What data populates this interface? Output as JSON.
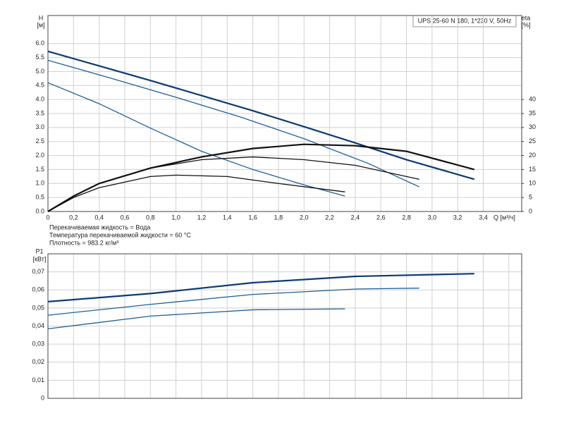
{
  "chart_data": [
    {
      "type": "line",
      "title": "UPS 25-60 N 180, 1*230 V, 50Hz",
      "y_label": "H",
      "y_unit": "[м]",
      "y2_label": "eta",
      "y2_unit": "[%]",
      "x_label": "Q [м³/ч]",
      "annotations": [
        "Перекачиваемая жидкость = Вода",
        "Температура перекачиваемой жидкости = 60 °C",
        "Плотность = 983.2 кг/м³"
      ],
      "xlim": [
        0,
        3.7
      ],
      "xticks": [
        0,
        {
          "value": 0.2,
          "label": "0,2"
        },
        {
          "value": 0.4,
          "label": "0,4"
        },
        {
          "value": 0.6,
          "label": "0,6"
        },
        {
          "value": 0.8,
          "label": "0,8"
        },
        {
          "value": 1.0,
          "label": "1,0"
        },
        {
          "value": 1.2,
          "label": "1,2"
        },
        {
          "value": 1.4,
          "label": "1,4"
        },
        {
          "value": 1.6,
          "label": "1,6"
        },
        {
          "value": 1.8,
          "label": "1,8"
        },
        {
          "value": 2.0,
          "label": "2,0"
        },
        {
          "value": 2.2,
          "label": "2,2"
        },
        {
          "value": 2.4,
          "label": "2,4"
        },
        {
          "value": 2.6,
          "label": "2,6"
        },
        {
          "value": 2.8,
          "label": "2,8"
        },
        {
          "value": 3.0,
          "label": "3,0"
        },
        {
          "value": 3.2,
          "label": "3,2"
        },
        {
          "value": 3.4,
          "label": "3,4"
        }
      ],
      "ylim": [
        0,
        7
      ],
      "yticks": [
        {
          "value": 0,
          "label": "0.0"
        },
        0.5,
        {
          "value": 1,
          "label": "1.0"
        },
        1.5,
        {
          "value": 2,
          "label": "2.0"
        },
        2.5,
        {
          "value": 3,
          "label": "3.0"
        },
        3.5,
        {
          "value": 4,
          "label": "4.0"
        },
        4.5,
        {
          "value": 5,
          "label": "5.0"
        },
        5.5,
        {
          "value": 6,
          "label": "6.0"
        }
      ],
      "y2lim": [
        0,
        70
      ],
      "y2ticks": [
        0,
        5,
        10,
        15,
        20,
        25,
        30,
        35,
        40
      ],
      "grid": true,
      "series": [
        {
          "color": "#0b3a75",
          "x": [
            0,
            0.4,
            0.8,
            1.2,
            1.6,
            2.0,
            2.4,
            2.8,
            3.33
          ],
          "values": [
            5.72,
            5.2,
            4.68,
            4.14,
            3.6,
            3.03,
            2.45,
            1.85,
            1.15
          ]
        },
        {
          "color": "#1f5f9a",
          "x": [
            0,
            0.5,
            1.0,
            1.5,
            2.0,
            2.5,
            2.9
          ],
          "values": [
            5.4,
            4.75,
            4.08,
            3.38,
            2.6,
            1.72,
            0.88
          ]
        },
        {
          "color": "#1f5f9a",
          "x": [
            0,
            0.4,
            0.8,
            1.2,
            1.6,
            2.0,
            2.32
          ],
          "values": [
            4.6,
            3.85,
            2.98,
            2.15,
            1.5,
            0.95,
            0.55
          ]
        },
        {
          "color": "#111111",
          "axis": "y2",
          "x": [
            0,
            0.2,
            0.4,
            0.8,
            1.2,
            1.6,
            2.0,
            2.4,
            2.8,
            3.33
          ],
          "values": [
            0,
            5.5,
            10,
            15.5,
            19.5,
            22.5,
            24,
            23.5,
            21.5,
            15
          ]
        },
        {
          "color": "#111111",
          "axis": "y2",
          "x": [
            0,
            0.2,
            0.4,
            0.8,
            1.2,
            1.6,
            2.0,
            2.4,
            2.9
          ],
          "values": [
            0,
            5.5,
            10,
            15.5,
            18.5,
            19.5,
            18.5,
            16.5,
            11.5
          ]
        },
        {
          "color": "#111111",
          "axis": "y2",
          "x": [
            0,
            0.2,
            0.4,
            0.8,
            1.0,
            1.4,
            1.8,
            2.32
          ],
          "values": [
            0,
            5,
            8.5,
            12.5,
            13,
            12.5,
            10,
            7
          ]
        }
      ]
    },
    {
      "type": "line",
      "y_label": "P1",
      "y_unit": "[кВт]",
      "xlim": [
        0,
        3.7
      ],
      "xticks": [
        0,
        0.2,
        0.4,
        0.6,
        0.8,
        1.0,
        1.2,
        1.4,
        1.6,
        1.8,
        2.0,
        2.2,
        2.4,
        2.6,
        2.8,
        3.0,
        3.2,
        3.4,
        3.6
      ],
      "ylim": [
        0,
        0.08
      ],
      "yticks": [
        0,
        {
          "value": 0.01,
          "label": "0,01"
        },
        {
          "value": 0.02,
          "label": "0,02"
        },
        {
          "value": 0.03,
          "label": "0,03"
        },
        {
          "value": 0.04,
          "label": "0,04"
        },
        {
          "value": 0.05,
          "label": "0,05"
        },
        {
          "value": 0.06,
          "label": "0,06"
        },
        {
          "value": 0.07,
          "label": "0,07"
        }
      ],
      "grid": true,
      "series": [
        {
          "color": "#0b3a75",
          "x": [
            0,
            0.8,
            1.6,
            2.4,
            3.33
          ],
          "values": [
            0.0535,
            0.058,
            0.064,
            0.0675,
            0.069
          ]
        },
        {
          "color": "#1f5f9a",
          "x": [
            0,
            0.8,
            1.6,
            2.4,
            2.9
          ],
          "values": [
            0.046,
            0.052,
            0.0575,
            0.0605,
            0.061
          ]
        },
        {
          "color": "#1f5f9a",
          "x": [
            0,
            0.8,
            1.6,
            2.32
          ],
          "values": [
            0.0385,
            0.0455,
            0.049,
            0.0495
          ]
        }
      ]
    }
  ]
}
